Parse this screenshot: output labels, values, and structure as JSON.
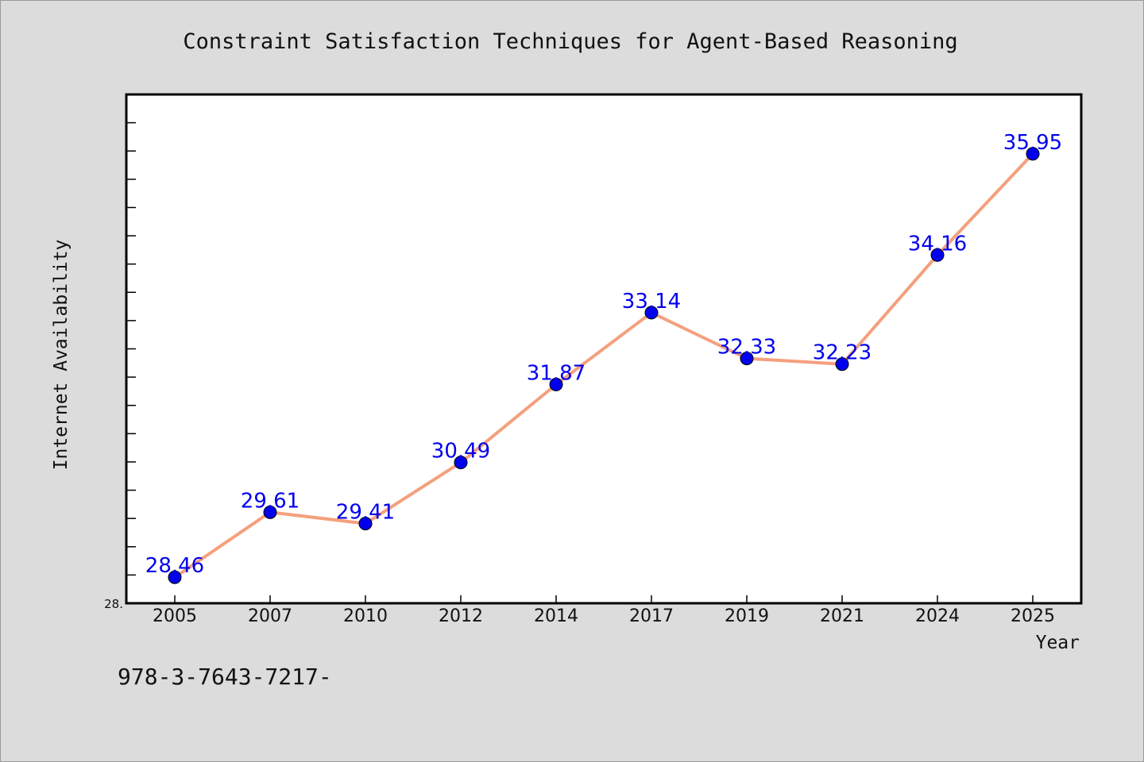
{
  "chart_data": {
    "type": "line",
    "title": "Constraint Satisfaction Techniques for Agent-Based Reasoning",
    "xlabel": "Year",
    "ylabel": "Internet Availability",
    "categories": [
      "2005",
      "2007",
      "2010",
      "2012",
      "2014",
      "2017",
      "2019",
      "2021",
      "2024",
      "2025"
    ],
    "values": [
      28.46,
      29.61,
      29.41,
      30.49,
      31.87,
      33.14,
      32.33,
      32.23,
      34.16,
      35.95
    ],
    "data_labels": [
      "28.46",
      "29.61",
      "29.41",
      "30.49",
      "31.87",
      "33.14",
      "32.33",
      "32.23",
      "34.16",
      "35.95"
    ],
    "ylim": [
      28.0,
      37.0
    ],
    "y_tick_labels": [
      "28."
    ],
    "grid": false,
    "legend": "none",
    "colors": {
      "line": "#f4a07e",
      "marker": "#0000ee",
      "data_label": "#0000ee",
      "plot_background": "#ffffff",
      "page_background": "#dcdcdc"
    }
  },
  "footer": {
    "text": "978-3-7643-7217-"
  }
}
